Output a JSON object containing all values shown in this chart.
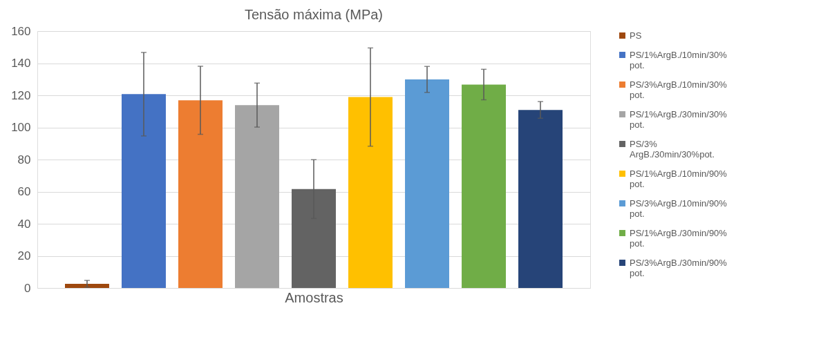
{
  "chart_data": {
    "type": "bar",
    "title": "Tensão máxima (MPa)",
    "xlabel": "Amostras",
    "categories": [
      null
    ],
    "series": [
      {
        "name": "PS",
        "color": "#9e480e",
        "values": [
          2.6
        ],
        "errors": [
          2.1
        ]
      },
      {
        "name": "PS/1%ArgB./10min/30% pot.",
        "color": "#4472c4",
        "values": [
          120.7
        ],
        "errors": [
          26
        ]
      },
      {
        "name": "PS/3%ArgB./10min/30% pot.",
        "color": "#ed7d31",
        "values": [
          116.9
        ],
        "errors": [
          21.2
        ]
      },
      {
        "name": "PS/1%ArgB./30min/30% pot.",
        "color": "#a5a5a5",
        "values": [
          113.9
        ],
        "errors": [
          13.7
        ]
      },
      {
        "name": "PS/3% ArgB./30min/30%pot.",
        "color": "#636363",
        "values": [
          61.6
        ],
        "errors": [
          18.3
        ]
      },
      {
        "name": "PS/1%ArgB./10min/90% pot.",
        "color": "#ffc000",
        "values": [
          118.9
        ],
        "errors": [
          30.6
        ]
      },
      {
        "name": "PS/3%ArgB./10min/90% pot.",
        "color": "#5b9bd5",
        "values": [
          129.9
        ],
        "errors": [
          8.1
        ]
      },
      {
        "name": "PS/1%ArgB./30min/90% pot.",
        "color": "#70ad47",
        "values": [
          126.7
        ],
        "errors": [
          9.5
        ]
      },
      {
        "name": "PS/3%ArgB./30min/90% pot.",
        "color": "#264478",
        "values": [
          110.9
        ],
        "errors": [
          5.2
        ]
      }
    ],
    "ylim": [
      0,
      160
    ],
    "yticks": [
      0,
      20,
      40,
      60,
      80,
      100,
      120,
      140,
      160
    ],
    "grid": "y",
    "legend": "right",
    "tick_labels": "y"
  }
}
